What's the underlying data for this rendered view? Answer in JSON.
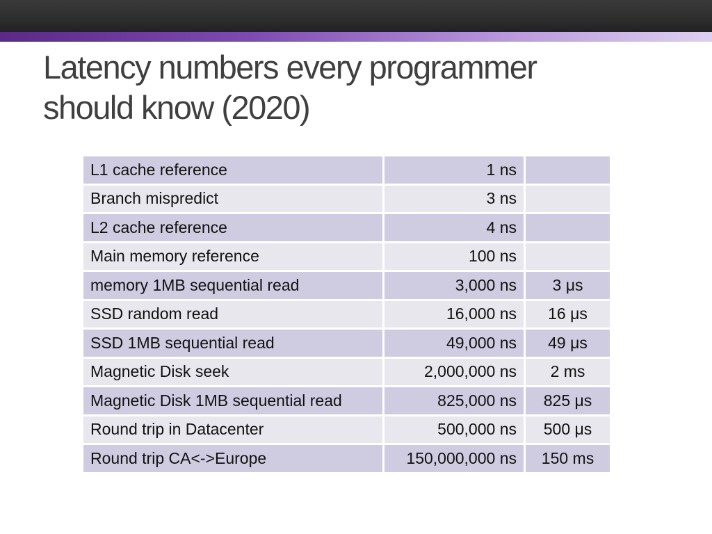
{
  "slide": {
    "title_line1": "Latency numbers every programmer",
    "title_line2": "should know (2020)"
  },
  "colors": {
    "top_bar": "#2b2b2b",
    "accent_bar_start": "#5a2a86",
    "accent_bar_end": "#ddd0ef",
    "row_dark": "#cfcce1",
    "row_light": "#e8e7ee",
    "title_text": "#3f3f3f"
  },
  "table": {
    "rows": [
      {
        "label": "L1 cache reference",
        "ns": "1 ns",
        "alt": ""
      },
      {
        "label": "Branch mispredict",
        "ns": "3 ns",
        "alt": ""
      },
      {
        "label": "L2 cache reference",
        "ns": "4 ns",
        "alt": ""
      },
      {
        "label": "Main memory reference",
        "ns": "100 ns",
        "alt": ""
      },
      {
        "label": "memory 1MB sequential read",
        "ns": "3,000 ns",
        "alt": "3 μs"
      },
      {
        "label": "SSD random read",
        "ns": "16,000 ns",
        "alt": "16 μs"
      },
      {
        "label": "SSD 1MB sequential read",
        "ns": "49,000 ns",
        "alt": "49 μs"
      },
      {
        "label": "Magnetic Disk seek",
        "ns": "2,000,000 ns",
        "alt": "2 ms"
      },
      {
        "label": "Magnetic Disk 1MB sequential read",
        "ns": "825,000 ns",
        "alt": "825 μs"
      },
      {
        "label": "Round trip in Datacenter",
        "ns": "500,000 ns",
        "alt": "500 μs"
      },
      {
        "label": "Round trip CA<->Europe",
        "ns": "150,000,000 ns",
        "alt": "150 ms"
      }
    ]
  }
}
